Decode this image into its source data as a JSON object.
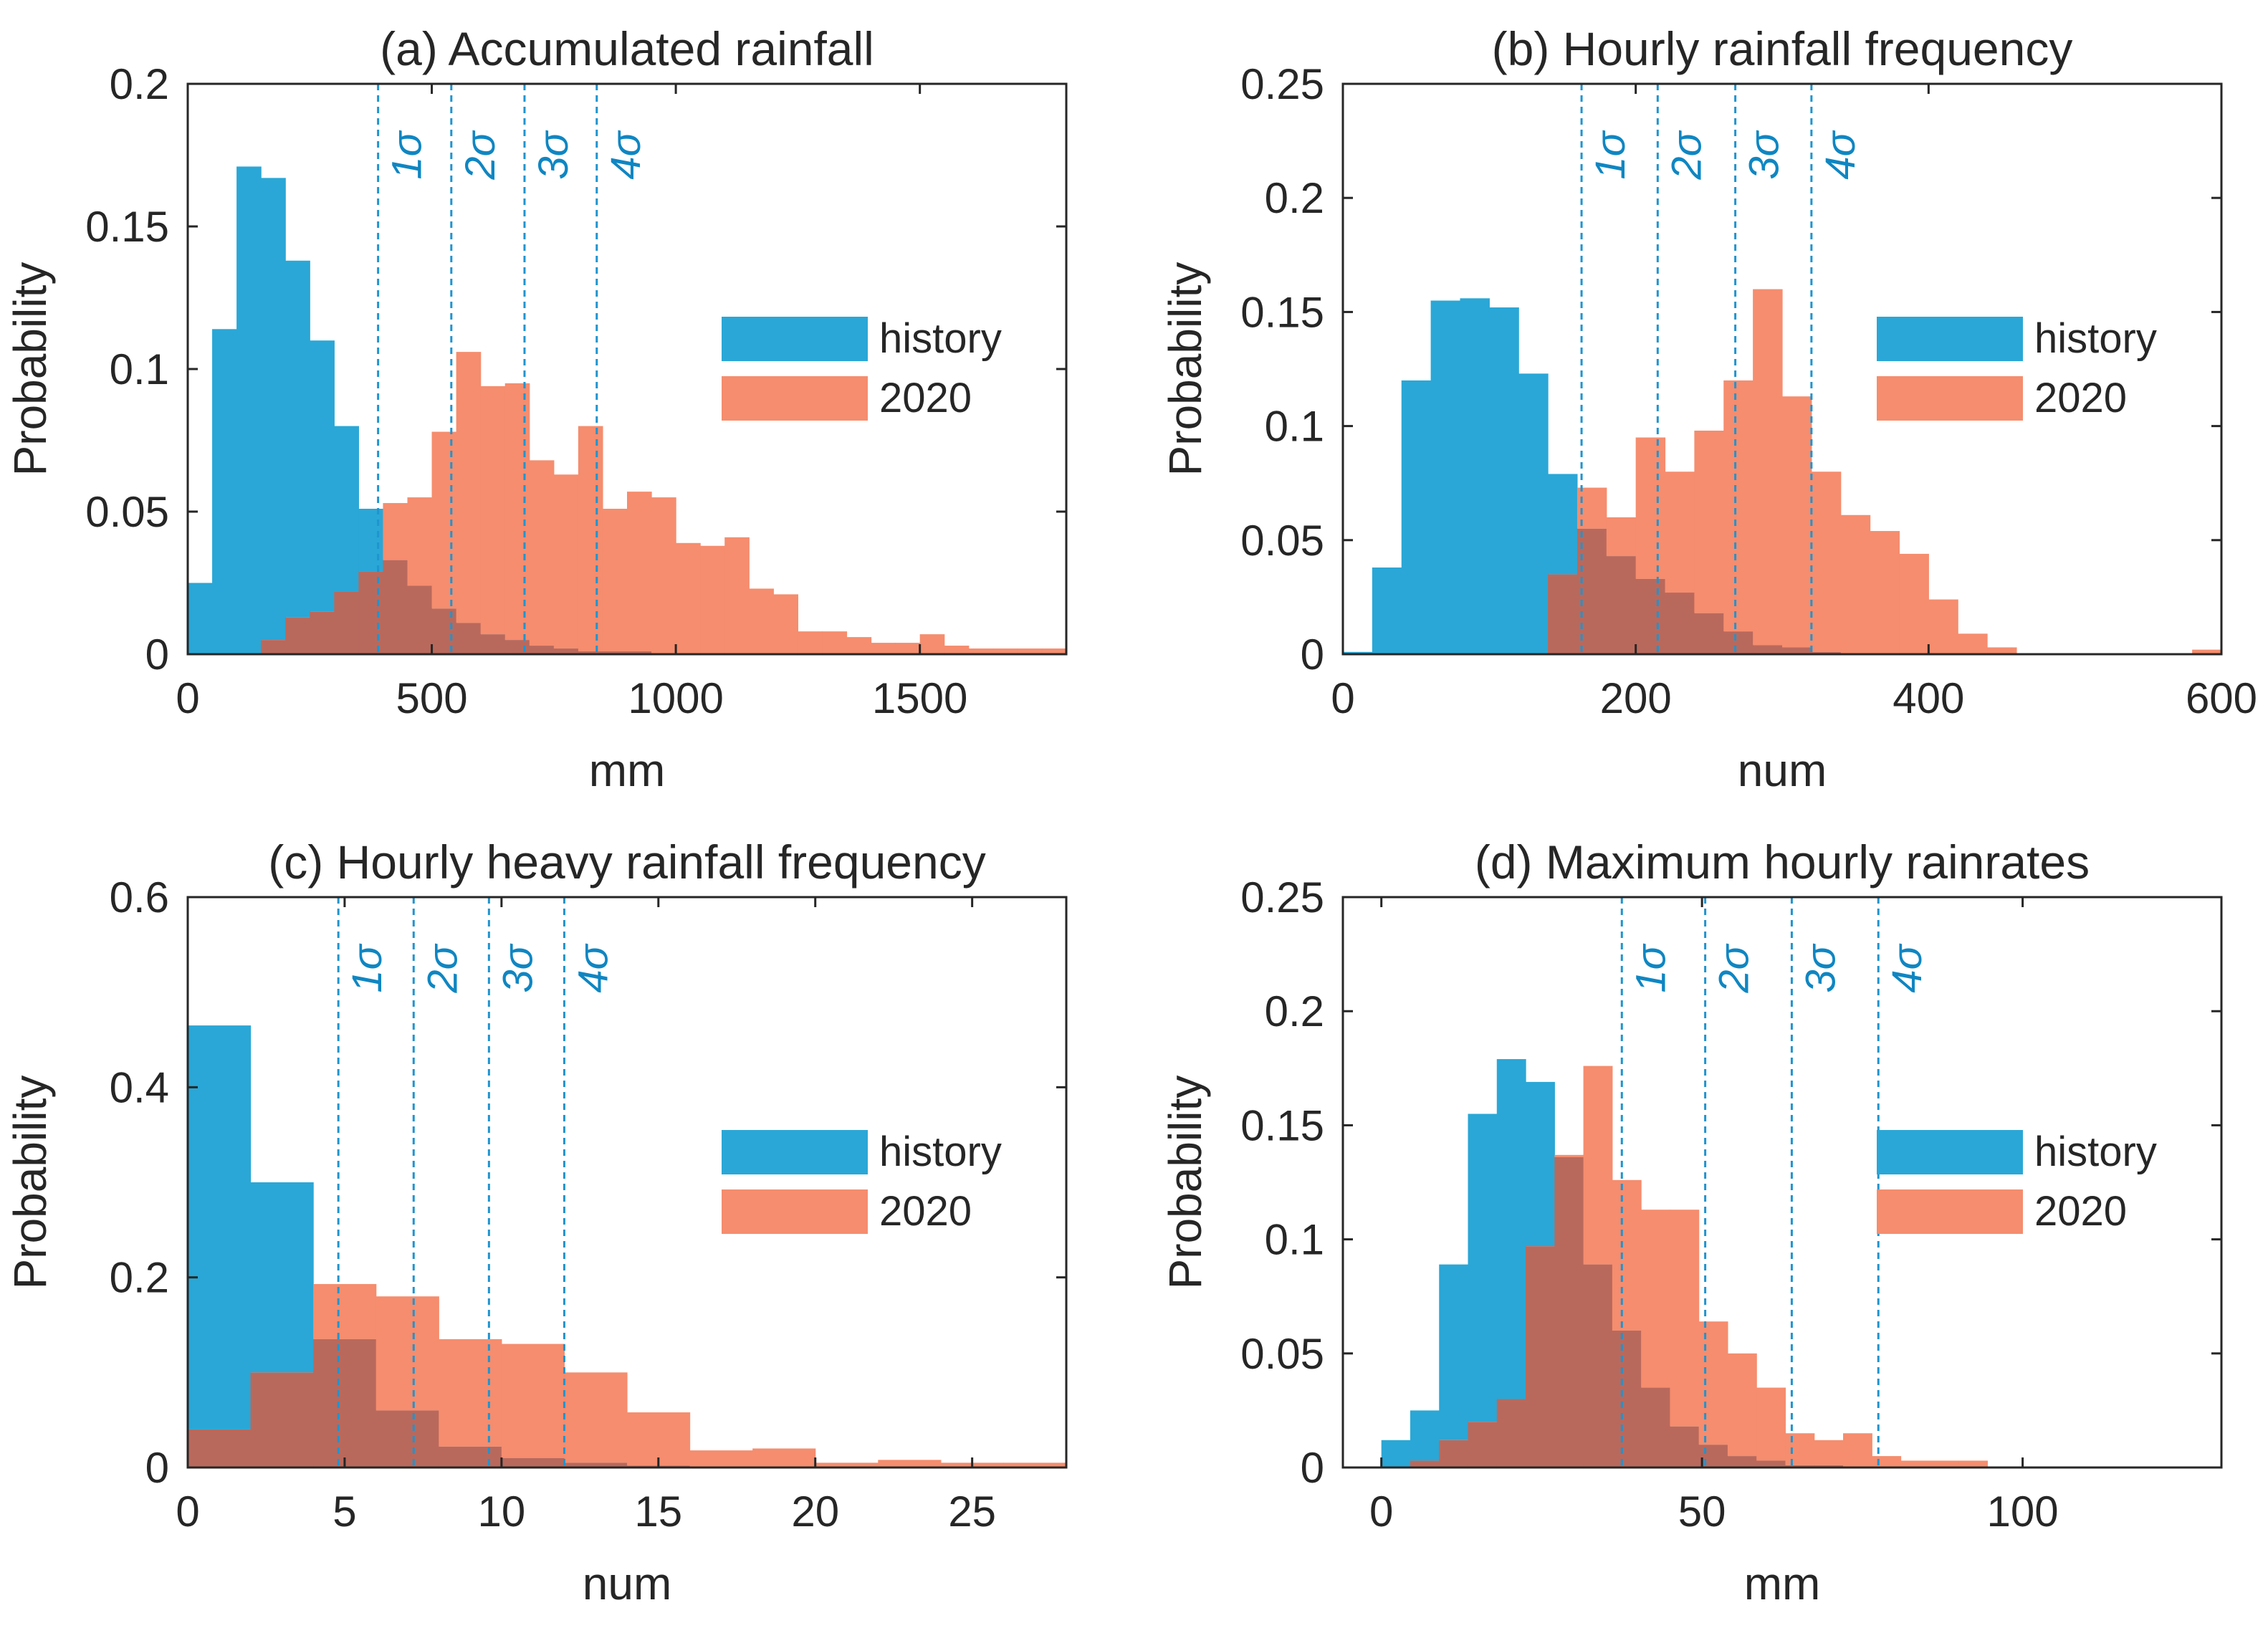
{
  "colors": {
    "history": "#2aa7d6",
    "y2020": "#f58d6e",
    "overlap": "#b9695c",
    "sigma": "#0f86c2"
  },
  "chart_data": [
    {
      "type": "bar",
      "title": "(a) Accumulated rainfall",
      "xlabel": "mm",
      "ylabel": "Probability",
      "xlim": [
        0,
        1800
      ],
      "ylim": [
        0,
        0.2
      ],
      "xticks": [
        "0",
        "500",
        "1000",
        "1500"
      ],
      "xtick_values": [
        0,
        500,
        1000,
        1500
      ],
      "yticks": [
        "0",
        "0.05",
        "0.1",
        "0.15",
        "0.2"
      ],
      "ytick_values": [
        0,
        0.05,
        0.1,
        0.15,
        0.2
      ],
      "legend": [
        "history",
        "2020"
      ],
      "legend_position": "right",
      "sigma_labels": [
        "1σ",
        "2σ",
        "3σ",
        "4σ"
      ],
      "sigma_values": [
        390,
        540,
        690,
        838
      ],
      "series": [
        {
          "name": "history",
          "bin_start": 0,
          "bin_width": 50,
          "values": [
            0.025,
            0.114,
            0.171,
            0.167,
            0.138,
            0.11,
            0.08,
            0.051,
            0.033,
            0.024,
            0.016,
            0.011,
            0.007,
            0.005,
            0.003,
            0.002,
            0.001,
            0.001,
            0.001,
            0,
            0,
            0,
            0,
            0,
            0,
            0,
            0,
            0,
            0,
            0,
            0,
            0,
            0,
            0,
            0,
            0
          ]
        },
        {
          "name": "2020",
          "bin_start": 0,
          "bin_width": 50,
          "values": [
            0,
            0,
            0,
            0.005,
            0.013,
            0.015,
            0.022,
            0.029,
            0.053,
            0.055,
            0.078,
            0.106,
            0.094,
            0.095,
            0.068,
            0.063,
            0.08,
            0.051,
            0.057,
            0.055,
            0.039,
            0.038,
            0.041,
            0.023,
            0.021,
            0.008,
            0.008,
            0.006,
            0.004,
            0.004,
            0.007,
            0.003,
            0.002,
            0.002,
            0.002,
            0.002
          ]
        }
      ]
    },
    {
      "type": "bar",
      "title": "(b) Hourly rainfall frequency",
      "xlabel": "num",
      "ylabel": "Probability",
      "xlim": [
        0,
        600
      ],
      "ylim": [
        0,
        0.25
      ],
      "xticks": [
        "0",
        "200",
        "400",
        "600"
      ],
      "xtick_values": [
        0,
        200,
        400,
        600
      ],
      "yticks": [
        "0",
        "0.05",
        "0.1",
        "0.15",
        "0.2",
        "0.25"
      ],
      "ytick_values": [
        0,
        0.05,
        0.1,
        0.15,
        0.2,
        0.25
      ],
      "legend": [
        "history",
        "2020"
      ],
      "legend_position": "right",
      "sigma_labels": [
        "1σ",
        "2σ",
        "3σ",
        "4σ"
      ],
      "sigma_values": [
        163,
        215,
        268,
        320
      ],
      "series": [
        {
          "name": "history",
          "bin_start": 0,
          "bin_width": 20,
          "values": [
            0.001,
            0.038,
            0.12,
            0.155,
            0.156,
            0.152,
            0.123,
            0.079,
            0.055,
            0.043,
            0.033,
            0.027,
            0.018,
            0.01,
            0.004,
            0.003,
            0.001,
            0,
            0,
            0,
            0,
            0,
            0,
            0,
            0,
            0,
            0,
            0,
            0,
            0
          ]
        },
        {
          "name": "2020",
          "bin_start": 0,
          "bin_width": 20,
          "values": [
            0,
            0,
            0,
            0,
            0,
            0,
            0,
            0.035,
            0.073,
            0.06,
            0.095,
            0.08,
            0.098,
            0.12,
            0.16,
            0.113,
            0.08,
            0.061,
            0.054,
            0.044,
            0.024,
            0.009,
            0.003,
            0,
            0,
            0,
            0,
            0,
            0,
            0.002
          ]
        }
      ]
    },
    {
      "type": "bar",
      "title": "(c) Hourly heavy rainfall frequency",
      "xlabel": "num",
      "ylabel": "Probability",
      "xlim": [
        0,
        28
      ],
      "ylim": [
        0,
        0.6
      ],
      "xticks": [
        "0",
        "5",
        "10",
        "15",
        "20",
        "25"
      ],
      "xtick_values": [
        0,
        5,
        10,
        15,
        20,
        25
      ],
      "yticks": [
        "0",
        "0.2",
        "0.4",
        "0.6"
      ],
      "ytick_values": [
        0,
        0.2,
        0.4,
        0.6
      ],
      "legend": [
        "history",
        "2020"
      ],
      "legend_position": "right",
      "sigma_labels": [
        "1σ",
        "2σ",
        "3σ",
        "4σ"
      ],
      "sigma_values": [
        4.8,
        7.2,
        9.6,
        12.0
      ],
      "series": [
        {
          "name": "history",
          "bin_start": 0,
          "bin_width": 2,
          "values": [
            0.465,
            0.3,
            0.135,
            0.06,
            0.022,
            0.01,
            0.005,
            0.002,
            0.001,
            0,
            0,
            0,
            0,
            0
          ]
        },
        {
          "name": "2020",
          "bin_start": 0,
          "bin_width": 2,
          "values": [
            0.04,
            0.1,
            0.193,
            0.18,
            0.135,
            0.13,
            0.1,
            0.058,
            0.018,
            0.02,
            0.005,
            0.008,
            0.005,
            0.005
          ]
        }
      ]
    },
    {
      "type": "bar",
      "title": "(d) Maximum hourly rainrates",
      "xlabel": "mm",
      "ylabel": "Probability",
      "xlim": [
        -6,
        131
      ],
      "ylim": [
        0,
        0.25
      ],
      "xticks": [
        "0",
        "50",
        "100"
      ],
      "xtick_values": [
        0,
        50,
        100
      ],
      "yticks": [
        "0",
        "0.05",
        "0.1",
        "0.15",
        "0.2",
        "0.25"
      ],
      "ytick_values": [
        0,
        0.05,
        0.1,
        0.15,
        0.2,
        0.25
      ],
      "legend": [
        "history",
        "2020"
      ],
      "legend_position": "right",
      "sigma_labels": [
        "1σ",
        "2σ",
        "3σ",
        "4σ"
      ],
      "sigma_values": [
        37.5,
        50.5,
        64,
        77.5
      ],
      "series": [
        {
          "name": "history",
          "bin_start": 0,
          "bin_width": 4.5,
          "values": [
            0.012,
            0.025,
            0.089,
            0.155,
            0.179,
            0.169,
            0.136,
            0.089,
            0.06,
            0.035,
            0.018,
            0.01,
            0.005,
            0.003,
            0.001,
            0.001,
            0,
            0,
            0,
            0,
            0,
            0
          ]
        },
        {
          "name": "2020",
          "bin_start": 0,
          "bin_width": 4.5,
          "values": [
            0,
            0.003,
            0.012,
            0.02,
            0.03,
            0.097,
            0.137,
            0.176,
            0.126,
            0.113,
            0.113,
            0.064,
            0.05,
            0.035,
            0.015,
            0.012,
            0.015,
            0.005,
            0.003,
            0.003,
            0.003,
            0
          ]
        }
      ]
    }
  ]
}
